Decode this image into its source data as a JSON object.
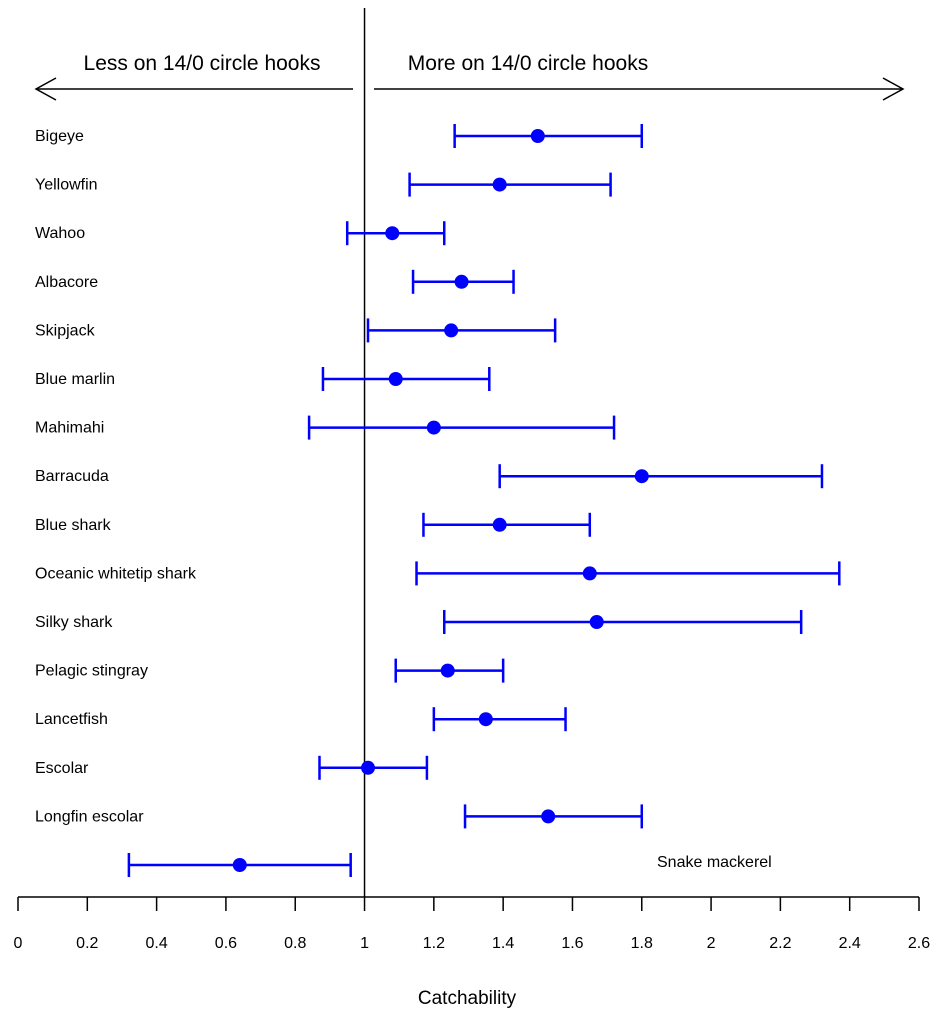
{
  "chart_data": {
    "type": "forest",
    "xlabel": "Catchability",
    "xlim": [
      0,
      2.6
    ],
    "xticks": [
      0,
      0.2,
      0.4,
      0.6,
      0.8,
      1,
      1.2,
      1.4,
      1.6,
      1.8,
      2,
      2.2,
      2.4,
      2.6
    ],
    "tick_labels": [
      "0",
      "0.2",
      "0.4",
      "0.6",
      "0.8",
      "1",
      "1.2",
      "1.4",
      "1.6",
      "1.8",
      "2",
      "2.2",
      "2.4",
      "2.6"
    ],
    "reference_line": 1,
    "annotations": {
      "left_arrow": "Less on 14/0 circle hooks",
      "right_arrow": "More on 14/0 circle hooks"
    },
    "color": "#0000ff",
    "series": [
      {
        "species": "Bigeye",
        "estimate": 1.5,
        "lower": 1.26,
        "upper": 1.8
      },
      {
        "species": "Yellowfin",
        "estimate": 1.39,
        "lower": 1.13,
        "upper": 1.71
      },
      {
        "species": "Wahoo",
        "estimate": 1.08,
        "lower": 0.95,
        "upper": 1.23
      },
      {
        "species": "Albacore",
        "estimate": 1.28,
        "lower": 1.14,
        "upper": 1.43
      },
      {
        "species": "Skipjack",
        "estimate": 1.25,
        "lower": 1.01,
        "upper": 1.55
      },
      {
        "species": "Blue marlin",
        "estimate": 1.09,
        "lower": 0.88,
        "upper": 1.36
      },
      {
        "species": "Mahimahi",
        "estimate": 1.2,
        "lower": 0.84,
        "upper": 1.72
      },
      {
        "species": "Barracuda",
        "estimate": 1.8,
        "lower": 1.39,
        "upper": 2.32
      },
      {
        "species": "Blue shark",
        "estimate": 1.39,
        "lower": 1.17,
        "upper": 1.65
      },
      {
        "species": "Oceanic whitetip shark",
        "estimate": 1.65,
        "lower": 1.15,
        "upper": 2.37
      },
      {
        "species": "Silky shark",
        "estimate": 1.67,
        "lower": 1.23,
        "upper": 2.26
      },
      {
        "species": "Pelagic stingray",
        "estimate": 1.24,
        "lower": 1.09,
        "upper": 1.4
      },
      {
        "species": "Lancetfish",
        "estimate": 1.35,
        "lower": 1.2,
        "upper": 1.58
      },
      {
        "species": "Escolar",
        "estimate": 1.01,
        "lower": 0.87,
        "upper": 1.18
      },
      {
        "species": "Longfin escolar",
        "estimate": 1.53,
        "lower": 1.29,
        "upper": 1.8
      },
      {
        "species": "Snake mackerel",
        "estimate": 0.64,
        "lower": 0.32,
        "upper": 0.96,
        "label_side": "right"
      }
    ]
  }
}
